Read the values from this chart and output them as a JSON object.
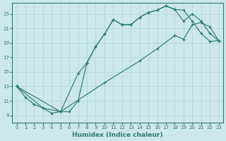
{
  "xlabel": "Humidex (Indice chaleur)",
  "background_color": "#cce8ec",
  "line_color": "#2e7b70",
  "grid_color": "#b8d8dc",
  "xlim": [
    -0.5,
    23.5
  ],
  "ylim": [
    8.0,
    24.5
  ],
  "xticks": [
    0,
    1,
    2,
    3,
    4,
    5,
    6,
    7,
    8,
    9,
    10,
    11,
    12,
    13,
    14,
    15,
    16,
    17,
    18,
    19,
    20,
    21,
    22,
    23
  ],
  "yticks": [
    9,
    11,
    13,
    15,
    17,
    19,
    21,
    23
  ],
  "line1_x": [
    0,
    1,
    2,
    3,
    4,
    5,
    6,
    7,
    8,
    9,
    10,
    11,
    12,
    13,
    14,
    15,
    16,
    17,
    18,
    19,
    20,
    21,
    22,
    23
  ],
  "line1_y": [
    13.0,
    11.5,
    10.5,
    10.0,
    9.3,
    9.5,
    9.5,
    11.0,
    16.3,
    18.5,
    20.2,
    22.2,
    21.5,
    21.5,
    22.5,
    23.2,
    23.5,
    24.1,
    23.6,
    23.5,
    22.0,
    20.3,
    19.2,
    19.3
  ],
  "line2_x": [
    0,
    3,
    5,
    7,
    8,
    9,
    10,
    11,
    12,
    13,
    14,
    15,
    16,
    17,
    18,
    19,
    20,
    21,
    22,
    23
  ],
  "line2_y": [
    13.0,
    10.0,
    9.5,
    14.8,
    16.2,
    18.5,
    20.2,
    22.2,
    21.5,
    21.5,
    22.5,
    23.2,
    23.5,
    24.1,
    23.6,
    22.0,
    23.0,
    22.0,
    20.3,
    19.3
  ],
  "line3_x": [
    0,
    5,
    10,
    14,
    16,
    18,
    19,
    20,
    21,
    22,
    23
  ],
  "line3_y": [
    13.0,
    9.5,
    13.5,
    16.5,
    18.2,
    20.0,
    19.5,
    21.5,
    21.8,
    21.2,
    19.3
  ]
}
